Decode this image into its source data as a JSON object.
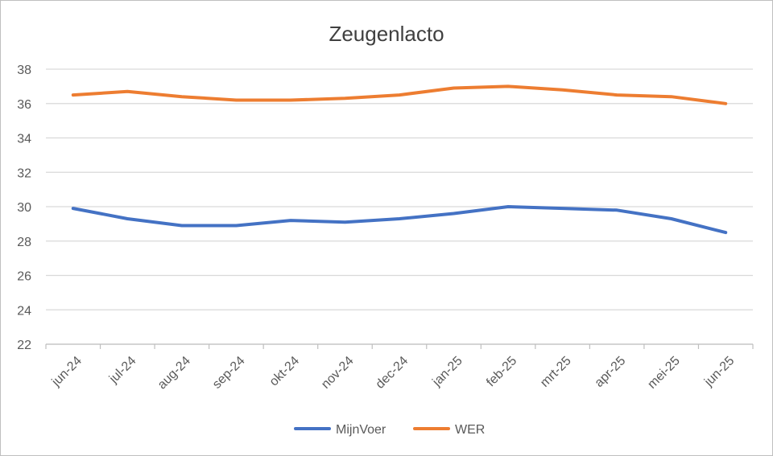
{
  "chart_data": {
    "type": "line",
    "title": "Zeugenlacto",
    "xlabel": "",
    "ylabel": "",
    "categories": [
      "jun-24",
      "jul-24",
      "aug-24",
      "sep-24",
      "okt-24",
      "nov-24",
      "dec-24",
      "jan-25",
      "feb-25",
      "mrt-25",
      "apr-25",
      "mei-25",
      "jun-25"
    ],
    "ylim": [
      22,
      38
    ],
    "yticks": [
      22,
      24,
      26,
      28,
      30,
      32,
      34,
      36,
      38
    ],
    "grid": true,
    "legend_position": "bottom",
    "series": [
      {
        "name": "MijnVoer",
        "color": "#4472C4",
        "values": [
          29.9,
          29.3,
          28.9,
          28.9,
          29.2,
          29.1,
          29.3,
          29.6,
          30.0,
          29.9,
          29.8,
          29.3,
          28.5
        ]
      },
      {
        "name": "WER",
        "color": "#ED7D31",
        "values": [
          36.5,
          36.7,
          36.4,
          36.2,
          36.2,
          36.3,
          36.5,
          36.9,
          37.0,
          36.8,
          36.5,
          36.4,
          36.0
        ]
      }
    ]
  }
}
